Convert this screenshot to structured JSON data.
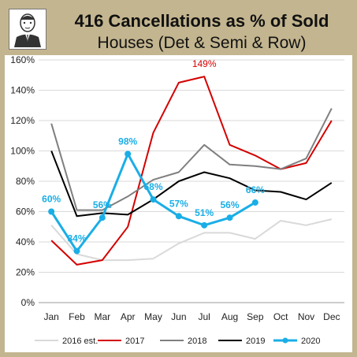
{
  "header": {
    "title": "416 Cancellations as % of Sold",
    "subtitle": "Houses (Det & Semi & Row)",
    "avatar_icon": "portrait-sketch-icon"
  },
  "chart_data": {
    "type": "line",
    "title": "416 Cancellations as % of Sold",
    "subtitle": "Houses (Det & Semi & Row)",
    "categories": [
      "Jan",
      "Feb",
      "Mar",
      "Apr",
      "May",
      "Jun",
      "Jul",
      "Aug",
      "Sep",
      "Oct",
      "Nov",
      "Dec"
    ],
    "yticks": [
      "0%",
      "20%",
      "40%",
      "60%",
      "80%",
      "100%",
      "120%",
      "140%",
      "160%"
    ],
    "ylim": [
      0,
      160
    ],
    "grid": true,
    "legend_position": "bottom",
    "series": [
      {
        "name": "2016 est.",
        "color": "#d9d9d9",
        "width": 2,
        "markers": false,
        "values": [
          51,
          32,
          28,
          28,
          29,
          39,
          46,
          46,
          42,
          54,
          51,
          55
        ]
      },
      {
        "name": "2017",
        "color": "#d40000",
        "width": 2,
        "markers": false,
        "values": [
          41,
          25,
          28,
          50,
          112,
          145,
          149,
          104,
          97,
          88,
          92,
          120
        ]
      },
      {
        "name": "2018",
        "color": "#7f7f7f",
        "width": 2,
        "markers": false,
        "values": [
          118,
          61,
          61,
          70,
          81,
          86,
          104,
          91,
          90,
          88,
          95,
          128
        ]
      },
      {
        "name": "2019",
        "color": "#000000",
        "width": 2,
        "markers": false,
        "values": [
          100,
          57,
          59,
          58,
          68,
          80,
          86,
          82,
          74,
          73,
          68,
          79
        ]
      },
      {
        "name": "2020",
        "color": "#1aaee6",
        "width": 3,
        "markers": true,
        "values": [
          60,
          34,
          56,
          98,
          68,
          57,
          51,
          56,
          66,
          null,
          null,
          null
        ]
      }
    ],
    "annotations": [
      {
        "text": "149%",
        "category": "Jul",
        "value": 149,
        "color": "#d40000"
      },
      {
        "text": "60%",
        "category": "Jan",
        "value": 60,
        "color": "#1aaee6"
      },
      {
        "text": "34%",
        "category": "Feb",
        "value": 34,
        "color": "#1aaee6"
      },
      {
        "text": "56%",
        "category": "Mar",
        "value": 56,
        "color": "#1aaee6"
      },
      {
        "text": "98%",
        "category": "Apr",
        "value": 98,
        "color": "#1aaee6"
      },
      {
        "text": "68%",
        "category": "May",
        "value": 68,
        "color": "#1aaee6"
      },
      {
        "text": "57%",
        "category": "Jun",
        "value": 57,
        "color": "#1aaee6"
      },
      {
        "text": "51%",
        "category": "Jul",
        "value": 51,
        "color": "#1aaee6"
      },
      {
        "text": "56%",
        "category": "Aug",
        "value": 56,
        "color": "#1aaee6"
      },
      {
        "text": "66%",
        "category": "Sep",
        "value": 66,
        "color": "#1aaee6"
      }
    ]
  }
}
